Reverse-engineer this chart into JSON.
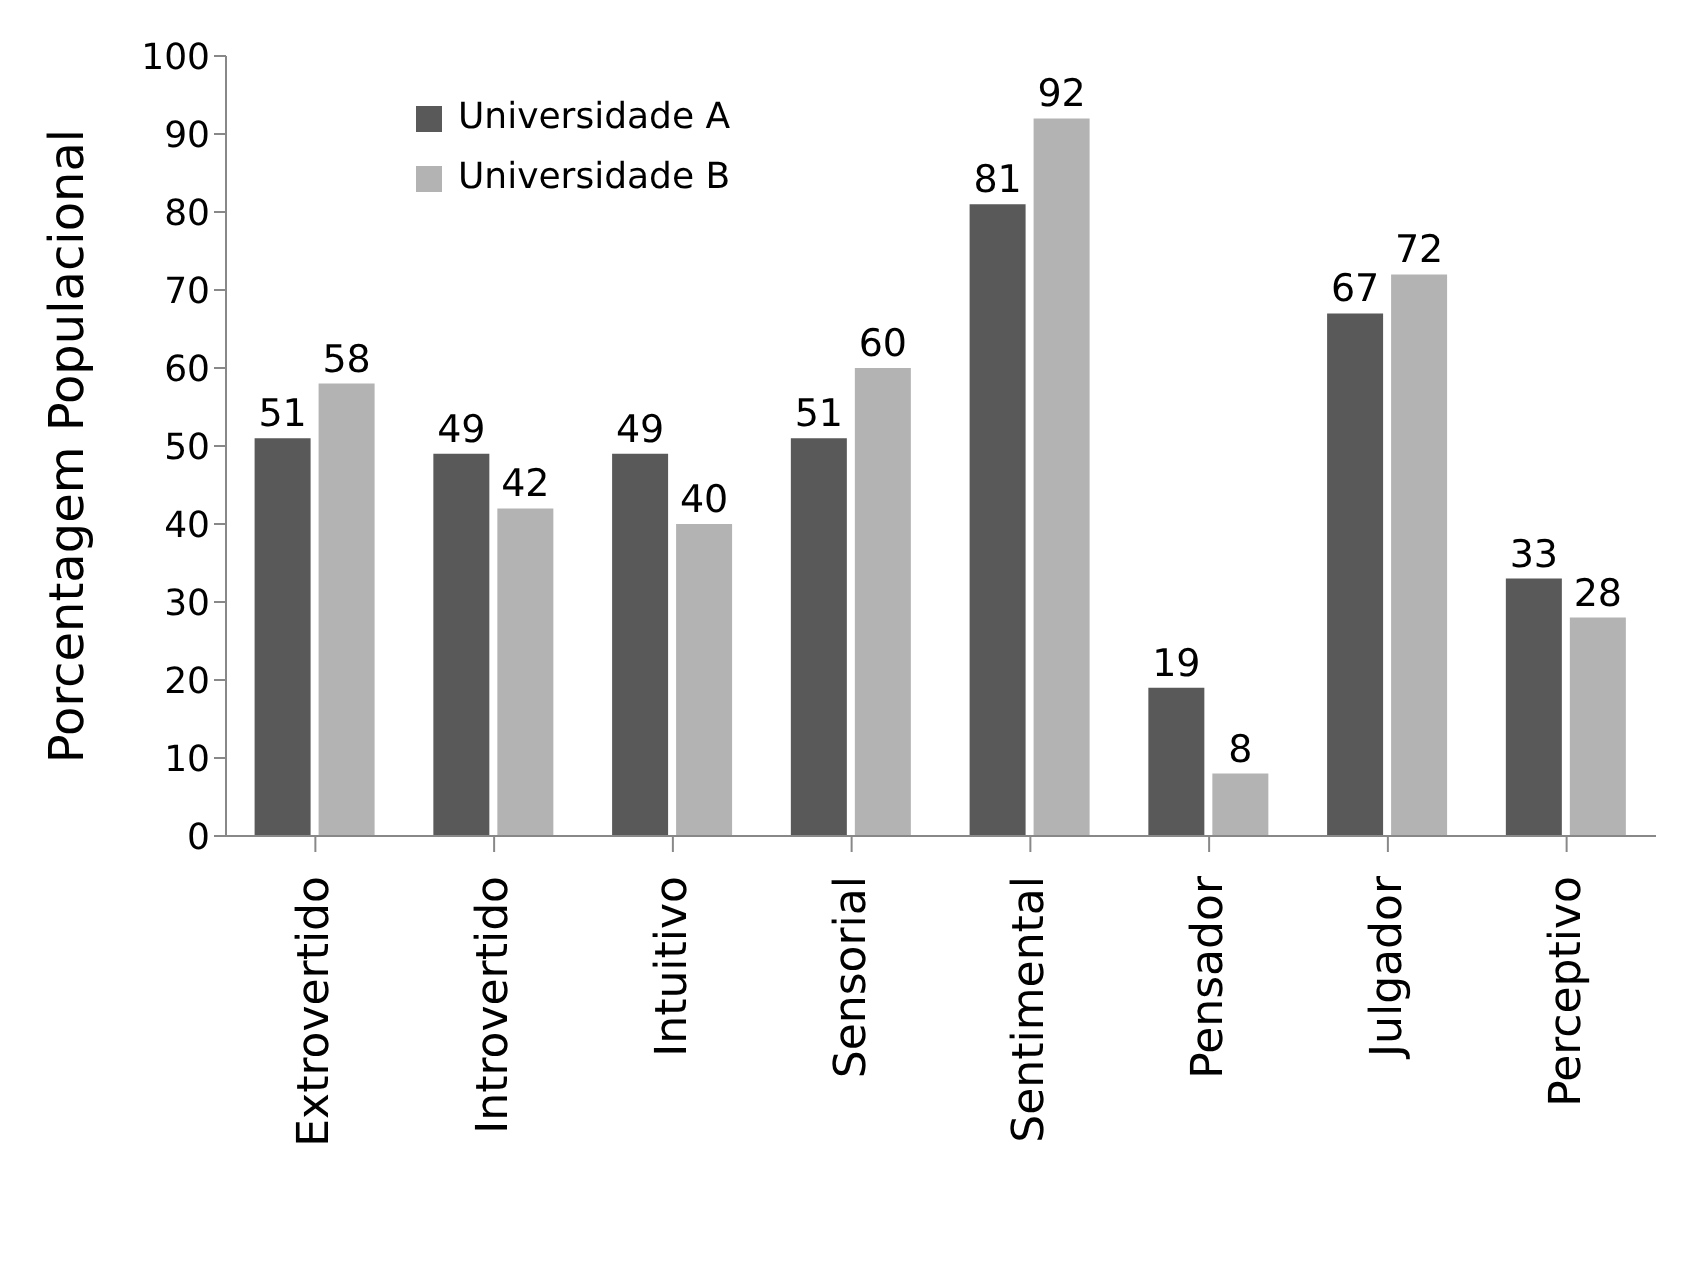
{
  "chart_data": {
    "type": "bar",
    "ylabel": "Porcentagem Populacional",
    "categories": [
      "Extrovertido",
      "Introvertido",
      "Intuitivo",
      "Sensorial",
      "Sentimental",
      "Pensador",
      "Julgador",
      "Perceptivo"
    ],
    "series": [
      {
        "name": "Universidade A",
        "color": "#595959",
        "values": [
          51,
          49,
          49,
          51,
          81,
          19,
          67,
          33
        ]
      },
      {
        "name": "Universidade B",
        "color": "#b3b3b3",
        "values": [
          58,
          42,
          40,
          60,
          92,
          8,
          72,
          28
        ]
      }
    ],
    "ylim": [
      0,
      100
    ],
    "yticks": [
      0,
      10,
      20,
      30,
      40,
      50,
      60,
      70,
      80,
      90,
      100
    ],
    "grid": false,
    "legend": "top left",
    "data_labels": true
  }
}
